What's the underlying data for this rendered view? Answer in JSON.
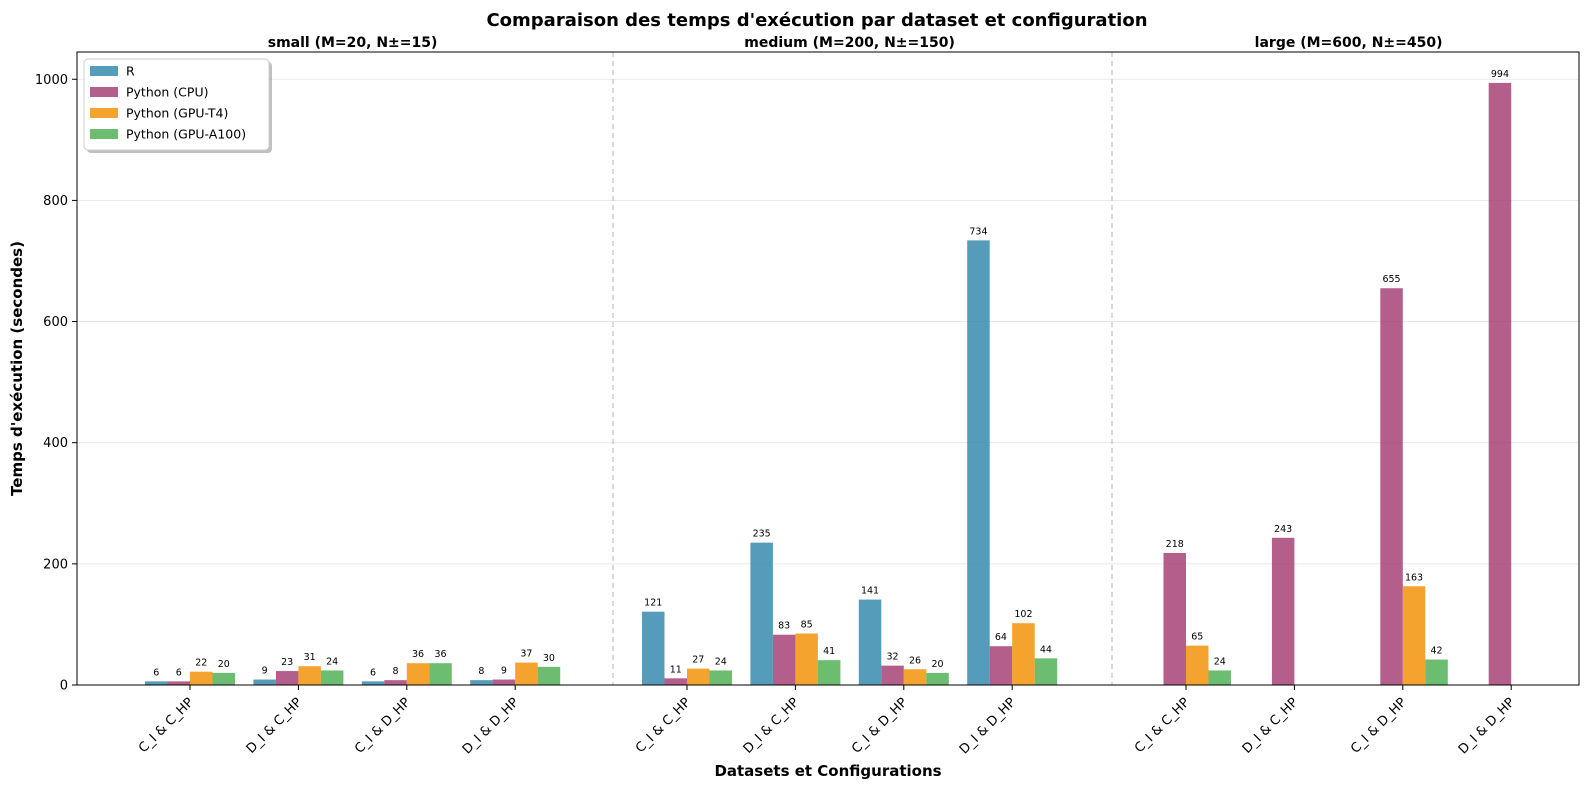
{
  "chart_data": {
    "type": "bar",
    "title": "Comparaison des temps d'exécution par dataset et configuration",
    "xlabel": "Datasets et Configurations",
    "ylabel": "Temps d'exécution (secondes)",
    "ylim": [
      0,
      1045
    ],
    "yticks": [
      0,
      200,
      400,
      600,
      800,
      1000
    ],
    "grid": "horizontal",
    "legend_position": "top-left",
    "groups": [
      {
        "title": "small (M=20, N±=15)",
        "categories": [
          "C_I & C_HP",
          "D_I & C_HP",
          "C_I & D_HP",
          "D_I & D_HP"
        ]
      },
      {
        "title": "medium (M=200, N±=150)",
        "categories": [
          "C_I & C_HP",
          "D_I & C_HP",
          "C_I & D_HP",
          "D_I & D_HP"
        ]
      },
      {
        "title": "large (M=600, N±=450)",
        "categories": [
          "C_I & C_HP",
          "D_I & C_HP",
          "C_I & D_HP",
          "D_I & D_HP"
        ]
      }
    ],
    "series": [
      {
        "name": "R",
        "color": "#2e86ab",
        "values": [
          [
            6,
            9,
            6,
            8
          ],
          [
            121,
            235,
            141,
            734
          ],
          [
            null,
            null,
            null,
            null
          ]
        ]
      },
      {
        "name": "Python (CPU)",
        "color": "#a23b72",
        "values": [
          [
            6,
            23,
            8,
            9
          ],
          [
            11,
            83,
            32,
            64
          ],
          [
            218,
            243,
            655,
            994
          ]
        ]
      },
      {
        "name": "Python (GPU-T4)",
        "color": "#f18f01",
        "values": [
          [
            22,
            31,
            36,
            37
          ],
          [
            27,
            85,
            26,
            102
          ],
          [
            65,
            null,
            163,
            null
          ]
        ]
      },
      {
        "name": "Python (GPU-A100)",
        "color": "#4caf50",
        "values": [
          [
            20,
            24,
            36,
            30
          ],
          [
            24,
            41,
            20,
            44
          ],
          [
            24,
            null,
            42,
            null
          ]
        ]
      }
    ]
  }
}
